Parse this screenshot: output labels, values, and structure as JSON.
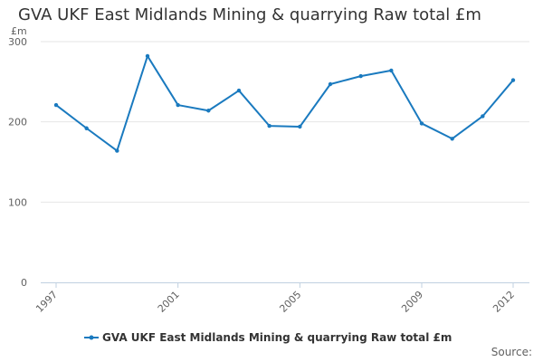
{
  "chart_data": {
    "type": "line",
    "title": "GVA UKF East Midlands Mining & quarrying Raw total £m",
    "ylabel": "£m",
    "xlabel": "",
    "x": [
      1997,
      1998,
      1999,
      2000,
      2001,
      2002,
      2003,
      2004,
      2005,
      2006,
      2007,
      2008,
      2009,
      2010,
      2011,
      2012
    ],
    "x_tick_labels": [
      "1997",
      "2001",
      "2005",
      "2009",
      "2012"
    ],
    "y_tick_labels": [
      "0",
      "100",
      "200",
      "300"
    ],
    "ylim": [
      0,
      300
    ],
    "grid": true,
    "legend_position": "bottom-center",
    "series": [
      {
        "name": "GVA UKF East Midlands Mining & quarrying Raw total £m",
        "color": "#1a7abf",
        "values": [
          221,
          192,
          164,
          282,
          221,
          214,
          239,
          195,
          194,
          247,
          257,
          264,
          198,
          179,
          207,
          252
        ]
      }
    ]
  },
  "source_label": "Source:"
}
